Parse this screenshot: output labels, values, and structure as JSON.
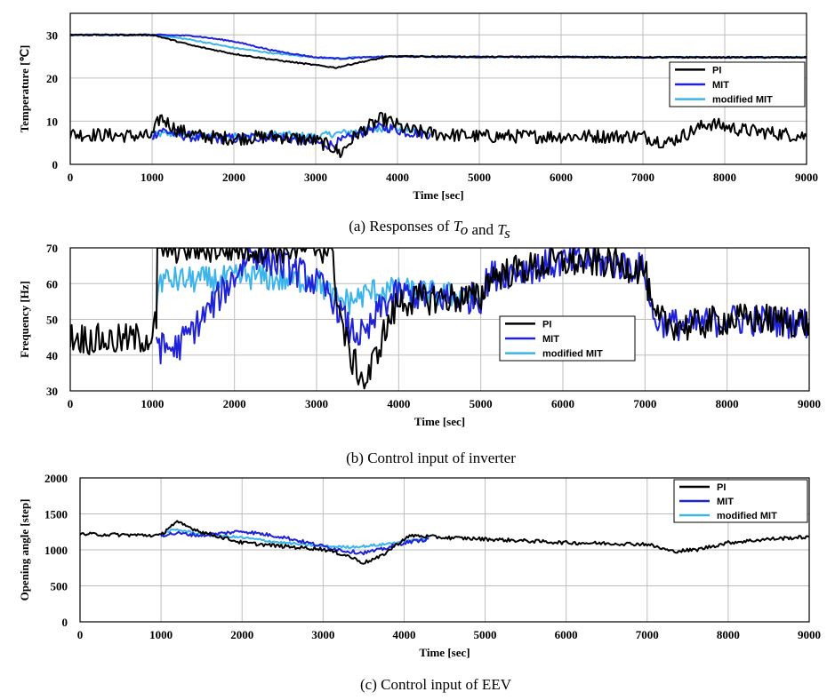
{
  "chart_data": [
    {
      "type": "line",
      "caption": {
        "prefix": "(a)  Responses  of  ",
        "var1": "T",
        "sub1": "o",
        "mid": "  and  ",
        "var2": "T",
        "sub2": "s"
      },
      "xlabel": "Time  [sec]",
      "ylabel": "Temperature [℃]",
      "xlim": [
        0,
        9000
      ],
      "ylim": [
        0,
        35
      ],
      "xticks": [
        0,
        1000,
        2000,
        3000,
        4000,
        5000,
        6000,
        7000,
        8000,
        9000
      ],
      "yticks": [
        0,
        10,
        20,
        30
      ],
      "grid": true,
      "legend_position": "right",
      "series": [
        {
          "name": "PI",
          "color": "#000000",
          "x": [
            0,
            1000,
            1050,
            1500,
            2000,
            2500,
            3000,
            3250,
            3500,
            3900,
            4200,
            5000,
            6000,
            7000,
            8000,
            9000
          ],
          "y": [
            30,
            30,
            29.8,
            27.5,
            25.6,
            24.2,
            23,
            22.4,
            23.5,
            25,
            25,
            24.9,
            24.9,
            24.8,
            24.8,
            24.8
          ]
        },
        {
          "name": "MIT",
          "color": "#1f22d6",
          "x": [
            0,
            1000,
            1100,
            1500,
            2000,
            2500,
            3000,
            3300,
            3500,
            3900,
            4200,
            5000,
            6000,
            7000,
            8000,
            9000
          ],
          "y": [
            30,
            30,
            30,
            29.8,
            28.5,
            26.3,
            24.8,
            24.5,
            24.7,
            25,
            25,
            24.9,
            24.9,
            24.8,
            24.8,
            24.8
          ]
        },
        {
          "name": "modified MIT",
          "color": "#3bb4ea",
          "x": [
            0,
            1000,
            1100,
            1500,
            2000,
            2500,
            3000,
            3300,
            3500,
            3900,
            4200,
            5000,
            6000,
            7000,
            8000,
            9000
          ],
          "y": [
            30,
            30,
            29.9,
            28.8,
            27,
            25.7,
            24.8,
            24.6,
            24.8,
            25,
            25,
            24.9,
            24.9,
            24.8,
            24.8,
            24.8
          ]
        },
        {
          "name": "PI",
          "color": "#000000",
          "x": [
            0,
            1000,
            1100,
            1300,
            1600,
            2000,
            2500,
            3000,
            3200,
            3300,
            3500,
            3800,
            3900,
            4100,
            4500,
            5000,
            6000,
            7000,
            7300,
            7800,
            8200,
            9000
          ],
          "y": [
            7,
            6.5,
            11,
            8,
            6.5,
            6,
            6.5,
            5.5,
            4,
            2.5,
            7,
            10.5,
            10,
            8,
            7,
            6.5,
            6.5,
            6.5,
            5,
            9.5,
            8,
            6.5
          ]
        },
        {
          "name": "MIT",
          "color": "#1f22d6",
          "x": [
            1000,
            1100,
            1300,
            1600,
            2000,
            2500,
            3000,
            3200,
            3400,
            3700,
            3900,
            4100,
            4400
          ],
          "y": [
            6.5,
            8,
            7,
            6,
            6,
            6.5,
            5,
            4.5,
            6,
            8.5,
            8.5,
            7.5,
            7
          ]
        },
        {
          "name": "modified MIT",
          "color": "#3bb4ea",
          "x": [
            1000,
            1100,
            1300,
            1600,
            2000,
            2500,
            3000,
            3200,
            3400,
            3700,
            3900,
            4100,
            4400
          ],
          "y": [
            6.5,
            7,
            7,
            6.5,
            6.5,
            7,
            6.5,
            7,
            7.5,
            8,
            8.5,
            8,
            7
          ]
        }
      ]
    },
    {
      "type": "line",
      "caption": {
        "text": "(b)  Control  input  of  inverter"
      },
      "xlabel": "Time  [sec]",
      "ylabel": "Frequency [Hz]",
      "xlim": [
        0,
        9000
      ],
      "ylim": [
        30,
        70
      ],
      "xticks": [
        0,
        1000,
        2000,
        3000,
        4000,
        5000,
        6000,
        7000,
        8000,
        9000
      ],
      "yticks": [
        30,
        40,
        50,
        60,
        70
      ],
      "grid": true,
      "legend_position": "center",
      "series": [
        {
          "name": "PI",
          "color": "#000000",
          "x": [
            0,
            500,
            1000,
            1050,
            1060,
            3200,
            3250,
            3400,
            3600,
            3800,
            4000,
            4500,
            5000,
            5100,
            5500,
            6000,
            6500,
            7000,
            7100,
            7500,
            8000,
            8500,
            9000
          ],
          "y": [
            45,
            44,
            45,
            50,
            70,
            70,
            55,
            40,
            32,
            45,
            55,
            56,
            56,
            62,
            64,
            66,
            66,
            64,
            50,
            48,
            50,
            50,
            49
          ]
        },
        {
          "name": "MIT",
          "color": "#1f22d6",
          "x": [
            1050,
            1100,
            1300,
            1600,
            2000,
            2200,
            2500,
            2800,
            3000,
            3200,
            3400,
            3600,
            3800,
            4000,
            4500,
            5000,
            5100,
            5500,
            6000,
            6500,
            7000,
            7100,
            7500,
            8000,
            9000
          ],
          "y": [
            46,
            42,
            42,
            50,
            62,
            69,
            66,
            63,
            60,
            56,
            47,
            45,
            54,
            57,
            56,
            56,
            62,
            64,
            66,
            66,
            64,
            50,
            48,
            50,
            49
          ]
        },
        {
          "name": "modified MIT",
          "color": "#3bb4ea",
          "x": [
            1050,
            1100,
            1400,
            1800,
            2200,
            2600,
            3000,
            3200,
            3400,
            3700,
            4000,
            4500,
            5000
          ],
          "y": [
            56,
            61,
            61,
            61,
            62,
            61,
            61,
            56,
            55,
            58,
            58,
            57,
            56
          ]
        }
      ]
    },
    {
      "type": "line",
      "caption": {
        "text": "(c)  Control  input  of  EEV"
      },
      "xlabel": "Time  [sec]",
      "ylabel": "Opening angle [step]",
      "xlim": [
        0,
        9000
      ],
      "ylim": [
        0,
        2000
      ],
      "xticks": [
        0,
        1000,
        2000,
        3000,
        4000,
        5000,
        6000,
        7000,
        8000,
        9000
      ],
      "yticks": [
        0,
        500,
        1000,
        1500,
        2000
      ],
      "grid": true,
      "legend_position": "top-right",
      "series": [
        {
          "name": "PI",
          "color": "#000000",
          "x": [
            0,
            500,
            1000,
            1100,
            1200,
            1500,
            2000,
            2500,
            3000,
            3300,
            3500,
            3700,
            4000,
            4100,
            4500,
            5000,
            6000,
            7000,
            7300,
            7600,
            8000,
            8500,
            9000
          ],
          "y": [
            1220,
            1210,
            1200,
            1320,
            1380,
            1250,
            1100,
            1050,
            1010,
            920,
            820,
            900,
            1150,
            1200,
            1170,
            1150,
            1100,
            1080,
            980,
            1000,
            1100,
            1150,
            1180
          ]
        },
        {
          "name": "MIT",
          "color": "#1f22d6",
          "x": [
            1000,
            1100,
            1200,
            1500,
            2000,
            2500,
            3000,
            3300,
            3500,
            3700,
            4000,
            4300
          ],
          "y": [
            1200,
            1220,
            1230,
            1200,
            1260,
            1180,
            1050,
            980,
            960,
            1000,
            1100,
            1150
          ]
        },
        {
          "name": "modified MIT",
          "color": "#3bb4ea",
          "x": [
            1000,
            1100,
            1200,
            1500,
            2000,
            2500,
            3000,
            3300,
            3500,
            3700,
            4000,
            4300
          ],
          "y": [
            1200,
            1260,
            1280,
            1220,
            1170,
            1100,
            1050,
            1040,
            1050,
            1070,
            1120,
            1150
          ]
        }
      ]
    }
  ]
}
